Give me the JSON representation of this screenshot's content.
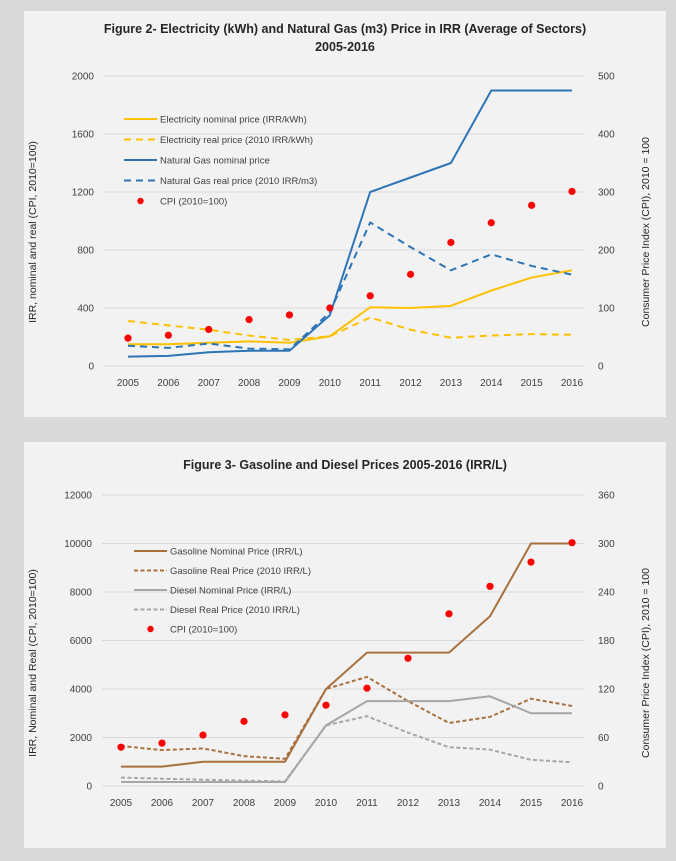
{
  "chart_data": [
    {
      "type": "line",
      "title_line1": "Figure 2- Electricity (kWh) and Natural Gas (m3) Price in IRR (Average of Sectors)",
      "title_line2": "2005-2016",
      "xlabel": "",
      "ylabel": "IRR, nominal and real (CPI, 2010=100)",
      "y2label": "Consumer Price Index (CPI), 2010 = 100",
      "categories": [
        "2005",
        "2006",
        "2007",
        "2008",
        "2009",
        "2010",
        "2011",
        "2012",
        "2013",
        "2014",
        "2015",
        "2016"
      ],
      "ylim": [
        0,
        2000
      ],
      "yticks": [
        "0",
        "400",
        "800",
        "1200",
        "1600",
        "2000"
      ],
      "y2lim": [
        0,
        500
      ],
      "y2ticks": [
        "0",
        "100",
        "200",
        "300",
        "400",
        "500"
      ],
      "grid": true,
      "legend_position": "top-left",
      "series": [
        {
          "name": "Electricity nominal price (IRR/kWh)",
          "axis": "left",
          "style": "solid",
          "color": "#ffc000",
          "values": [
            150,
            150,
            160,
            170,
            160,
            205,
            405,
            400,
            415,
            520,
            610,
            660
          ]
        },
        {
          "name": "Electricity real price (2010 IRR/kWh)",
          "axis": "left",
          "style": "dashed",
          "color": "#ffc000",
          "values": [
            310,
            280,
            250,
            210,
            180,
            205,
            335,
            250,
            195,
            210,
            220,
            215
          ]
        },
        {
          "name": "Natural Gas nominal price",
          "axis": "left",
          "style": "solid",
          "color": "#2e75b6",
          "values": [
            65,
            70,
            95,
            105,
            105,
            350,
            1200,
            1300,
            1400,
            1900,
            1900,
            1900
          ]
        },
        {
          "name": "Natural Gas real price (2010 IRR/m3)",
          "axis": "left",
          "style": "dashed",
          "color": "#2e75b6",
          "values": [
            140,
            125,
            155,
            120,
            115,
            370,
            990,
            820,
            660,
            770,
            690,
            630
          ]
        },
        {
          "name": "CPI (2010=100)",
          "axis": "right",
          "style": "marker",
          "color": "#ff0000",
          "values": [
            48,
            53,
            63,
            80,
            88,
            100,
            121,
            158,
            213,
            247,
            277,
            301
          ]
        }
      ]
    },
    {
      "type": "line",
      "title_line1": "Figure 3- Gasoline and Diesel Prices 2005-2016 (IRR/L)",
      "title_line2": "",
      "xlabel": "",
      "ylabel": "IRR, Nominal and Real (CPI, 2010=100)",
      "y2label": "Consumer Price Index (CPI), 2010 = 100",
      "categories": [
        "2005",
        "2006",
        "2007",
        "2008",
        "2009",
        "2010",
        "2011",
        "2012",
        "2013",
        "2014",
        "2015",
        "2016"
      ],
      "ylim": [
        0,
        12000
      ],
      "yticks": [
        "0",
        "2000",
        "4000",
        "6000",
        "8000",
        "10000",
        "12000"
      ],
      "y2lim": [
        0,
        360
      ],
      "y2ticks": [
        "0",
        "60",
        "120",
        "180",
        "240",
        "300",
        "360"
      ],
      "grid": true,
      "legend_position": "top-left",
      "series": [
        {
          "name": "Gasoline Nominal Price (IRR/L)",
          "axis": "left",
          "style": "solid",
          "color": "#a9713f",
          "values": [
            800,
            800,
            1000,
            1000,
            1000,
            4000,
            5500,
            5500,
            5500,
            7000,
            10000,
            10000
          ]
        },
        {
          "name": "Gasoline Real Price (2010 IRR/L)",
          "axis": "left",
          "style": "dashed",
          "color": "#a9713f",
          "values": [
            1650,
            1480,
            1550,
            1230,
            1120,
            4000,
            4500,
            3500,
            2600,
            2850,
            3600,
            3300
          ]
        },
        {
          "name": "Diesel Nominal Price (IRR/L)",
          "axis": "left",
          "style": "solid",
          "color": "#a6a6a6",
          "values": [
            165,
            165,
            165,
            165,
            165,
            2500,
            3500,
            3500,
            3500,
            3700,
            3000,
            3000
          ]
        },
        {
          "name": "Diesel Real Price (2010 IRR/L)",
          "axis": "left",
          "style": "dashed",
          "color": "#a6a6a6",
          "values": [
            350,
            300,
            260,
            220,
            190,
            2500,
            2880,
            2200,
            1600,
            1500,
            1080,
            980
          ]
        },
        {
          "name": "CPI (2010=100)",
          "axis": "right",
          "style": "marker",
          "color": "#ff0000",
          "values": [
            48,
            53,
            63,
            80,
            88,
            100,
            121,
            158,
            213,
            247,
            277,
            301
          ]
        }
      ]
    }
  ]
}
